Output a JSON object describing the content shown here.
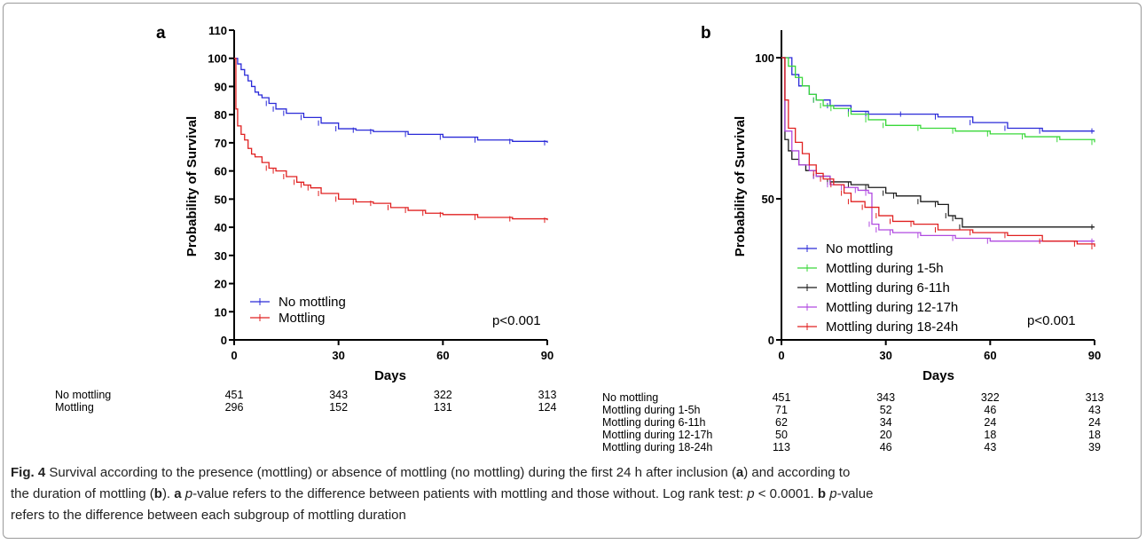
{
  "chart_data": [
    {
      "panel": "a",
      "type": "line",
      "ylabel": "Probability of Survival",
      "xlabel": "Days",
      "ylim": [
        0,
        110
      ],
      "xlim": [
        0,
        90
      ],
      "yticks": [
        0,
        10,
        20,
        30,
        40,
        50,
        60,
        70,
        80,
        90,
        100,
        110
      ],
      "xticks": [
        0,
        30,
        60,
        90
      ],
      "legend_position": "bottom-left",
      "annotation": "p<0.001",
      "series": [
        {
          "name": "No mottling",
          "color": "#2a2ad8",
          "x": [
            0,
            1,
            2,
            3,
            4,
            5,
            6,
            7,
            8,
            10,
            12,
            15,
            20,
            25,
            30,
            35,
            40,
            50,
            60,
            70,
            80,
            90
          ],
          "y": [
            100,
            98,
            96,
            94,
            92,
            90,
            88,
            87,
            86,
            84,
            82,
            80.5,
            79,
            77,
            75,
            74.5,
            74,
            73,
            72,
            71,
            70.5,
            70
          ]
        },
        {
          "name": "Mottling",
          "color": "#e02020",
          "x": [
            0,
            0.5,
            1,
            2,
            3,
            4,
            5,
            6,
            8,
            10,
            12,
            15,
            18,
            20,
            22,
            25,
            30,
            35,
            40,
            45,
            50,
            55,
            60,
            70,
            80,
            90
          ],
          "y": [
            100,
            82,
            76,
            73,
            71,
            68,
            66,
            65,
            63,
            61,
            60,
            58,
            56,
            55,
            54,
            52,
            50,
            49,
            48.5,
            47,
            46,
            45,
            44.5,
            43.5,
            43,
            42.5
          ]
        }
      ],
      "risk_table": {
        "rows": [
          {
            "label": "No mottling",
            "values": [
              "451",
              "343",
              "322",
              "313"
            ]
          },
          {
            "label": "Mottling",
            "values": [
              "296",
              "152",
              "131",
              "124"
            ]
          }
        ]
      }
    },
    {
      "panel": "b",
      "type": "line",
      "ylabel": "Probability of Survival",
      "xlabel": "Days",
      "ylim": [
        0,
        100
      ],
      "xlim": [
        0,
        90
      ],
      "yticks": [
        0,
        50,
        100
      ],
      "xticks": [
        0,
        30,
        60,
        90
      ],
      "legend_position": "bottom-left",
      "annotation": "p<0.001",
      "series": [
        {
          "name": "No mottling",
          "color": "#2a2ad8",
          "x": [
            0,
            3,
            5,
            8,
            10,
            14,
            20,
            25,
            35,
            45,
            55,
            65,
            75,
            90
          ],
          "y": [
            100,
            94,
            90,
            87,
            85,
            83,
            81,
            80,
            80,
            79,
            77,
            75,
            74,
            74
          ]
        },
        {
          "name": "Mottling during 1-5h",
          "color": "#3ad83a",
          "x": [
            0,
            2,
            4,
            6,
            8,
            10,
            12,
            15,
            20,
            25,
            30,
            40,
            50,
            60,
            70,
            80,
            90
          ],
          "y": [
            100,
            97,
            93,
            90,
            87,
            85,
            83,
            82,
            80,
            78,
            76,
            75,
            74,
            73,
            72,
            71,
            70
          ]
        },
        {
          "name": "Mottling during 6-11h",
          "color": "#1a1a1a",
          "x": [
            0,
            1,
            2,
            3,
            5,
            7,
            10,
            14,
            20,
            25,
            30,
            33,
            40,
            45,
            48,
            50,
            52,
            90
          ],
          "y": [
            100,
            71,
            67,
            64,
            62,
            60,
            58,
            56,
            55,
            54,
            52,
            51,
            49,
            48,
            44,
            43,
            40,
            40
          ]
        },
        {
          "name": "Mottling during 12-17h",
          "color": "#b04ae0",
          "x": [
            0,
            1,
            3,
            5,
            8,
            10,
            14,
            18,
            22,
            25,
            26,
            28,
            32,
            40,
            50,
            60,
            90
          ],
          "y": [
            100,
            74,
            67,
            62,
            60,
            58,
            55,
            54,
            53,
            52,
            41,
            39,
            38,
            37,
            36,
            35,
            35
          ]
        },
        {
          "name": "Mottling during 18-24h",
          "color": "#e02020",
          "x": [
            0,
            1,
            2,
            4,
            6,
            8,
            10,
            12,
            15,
            18,
            20,
            24,
            28,
            32,
            38,
            45,
            55,
            65,
            75,
            85,
            90
          ],
          "y": [
            100,
            85,
            75,
            70,
            66,
            62,
            59,
            57,
            55,
            52,
            49,
            47,
            44,
            42,
            41,
            39,
            38,
            37,
            35,
            34,
            33
          ]
        }
      ],
      "risk_table": {
        "rows": [
          {
            "label": "No mottling",
            "values": [
              "451",
              "343",
              "322",
              "313"
            ]
          },
          {
            "label": "Mottling during 1-5h",
            "values": [
              "71",
              "52",
              "46",
              "43"
            ]
          },
          {
            "label": "Mottling during 6-11h",
            "values": [
              "62",
              "34",
              "24",
              "24"
            ]
          },
          {
            "label": "Mottling during 12-17h",
            "values": [
              "50",
              "20",
              "18",
              "18"
            ]
          },
          {
            "label": "Mottling during 18-24h",
            "values": [
              "113",
              "46",
              "43",
              "39"
            ]
          }
        ]
      }
    }
  ],
  "caption": {
    "fig_label": "Fig. 4",
    "line1": "  Survival according to the presence (mottling) or absence of mottling (no mottling) during the first 24 h after inclusion (",
    "a1": "a",
    "line1_end": ") and according to",
    "line2_start": "the duration of mottling (",
    "b1": "b",
    "line2_mid": "). ",
    "a2": "a",
    "p1": "p",
    "line2_rest": "-value refers to the difference between patients with mottling and those without. Log rank test: ",
    "p2": "p",
    "pvalue": " < 0.0001. ",
    "b2": "b",
    "p3": "p",
    "line2_end": "-value",
    "line3": "refers to the difference between each subgroup of mottling duration"
  }
}
